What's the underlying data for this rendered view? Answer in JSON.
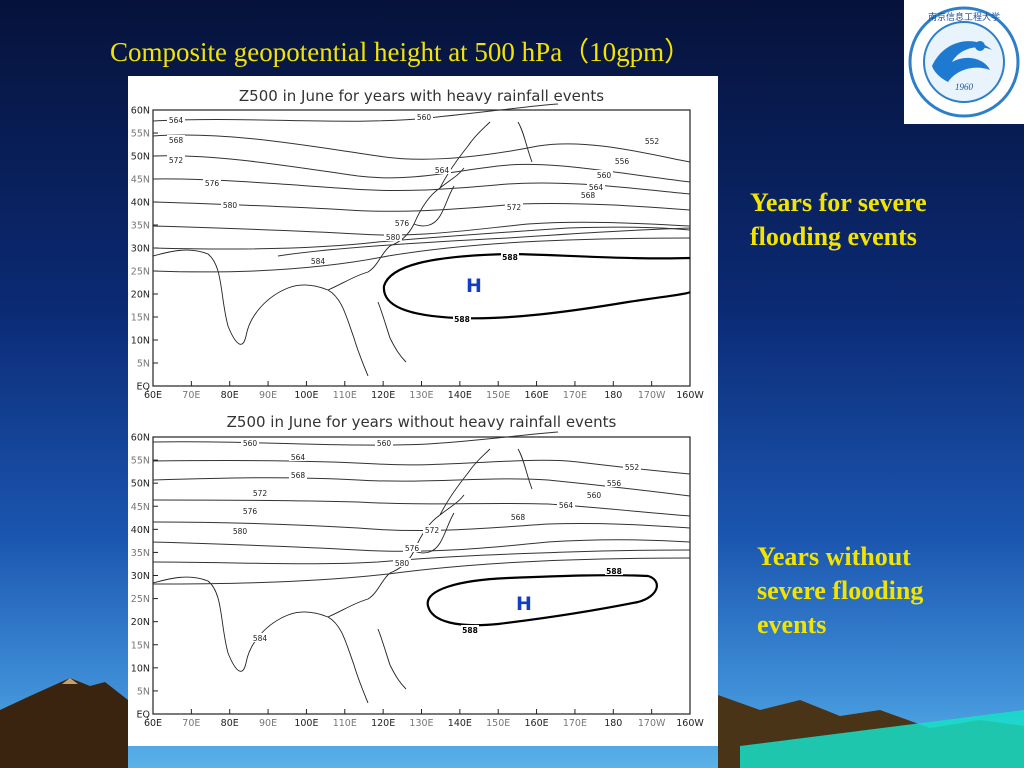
{
  "slide": {
    "title": "Composite geopotential height at 500 hPa（10gpm）"
  },
  "labels": {
    "severe": [
      "Years for severe",
      "flooding events"
    ],
    "without": [
      "Years without",
      "severe flooding",
      "events"
    ]
  },
  "logo": {
    "text_ring": "南京信息工程大学",
    "year": "1960",
    "english": "NANJING UNIVERSITY OF INFORMATION SCIENCE & TECHNOLOGY"
  },
  "axes": {
    "lat_ticks": [
      "60N",
      "55N",
      "50N",
      "45N",
      "40N",
      "35N",
      "30N",
      "25N",
      "20N",
      "15N",
      "10N",
      "5N",
      "EQ"
    ],
    "lon_ticks": [
      "60E",
      "70E",
      "80E",
      "90E",
      "100E",
      "110E",
      "120E",
      "130E",
      "140E",
      "150E",
      "160E",
      "170E",
      "180",
      "170W",
      "160W"
    ]
  },
  "panels": [
    {
      "title": "Z500 in June for years with heavy rainfall events",
      "high_label": "H",
      "contour_labels": [
        "552",
        "556",
        "560",
        "564",
        "568",
        "572",
        "576",
        "580",
        "584",
        "588"
      ]
    },
    {
      "title": "Z500 in June for years without heavy rainfall events",
      "high_label": "H",
      "contour_labels": [
        "552",
        "556",
        "560",
        "564",
        "568",
        "572",
        "576",
        "580",
        "584",
        "588"
      ]
    }
  ],
  "colors": {
    "title_yellow": "#f2e400",
    "high_blue": "#1040c0"
  }
}
